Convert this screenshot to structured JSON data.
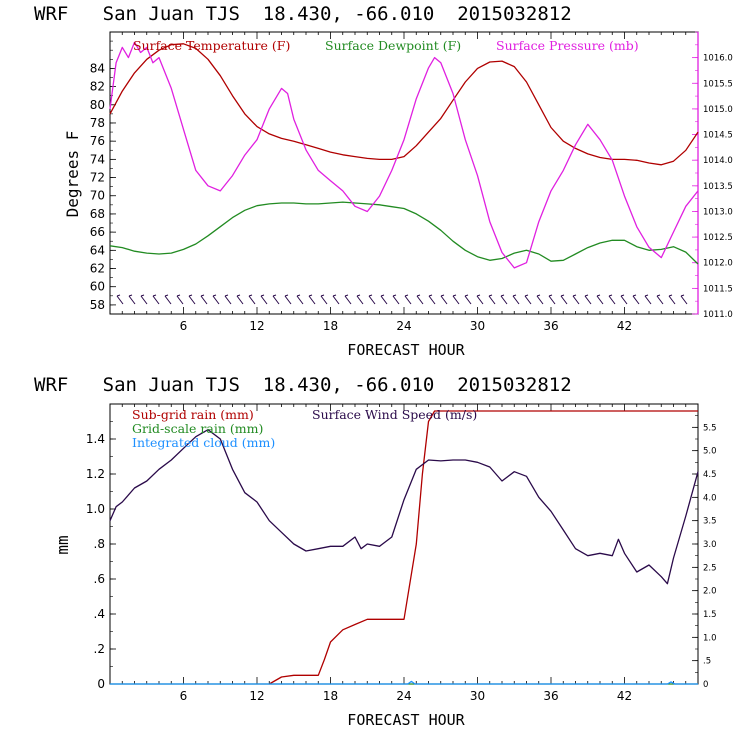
{
  "colors": {
    "temperature": "#b00000",
    "dewpoint": "#228b22",
    "pressure": "#e020e0",
    "subgrid_rain": "#b00000",
    "gridscale_rain": "#228b22",
    "cloud": "#1e90ff",
    "wind": "#2a0a4a",
    "frame": "#000000",
    "right_axis": "#e020e0"
  },
  "chart_data": [
    {
      "type": "line",
      "title": "WRF   San Juan TJS  18.430, -66.010  2015032812",
      "xlabel": "FORECAST HOUR",
      "ylabel": "Degrees F",
      "xlim": [
        0,
        48
      ],
      "ylim": [
        57,
        88
      ],
      "y2lim": [
        1011.0,
        1016.5
      ],
      "x_ticks": [
        6,
        12,
        18,
        24,
        30,
        36,
        42
      ],
      "y_ticks": [
        58,
        60,
        62,
        64,
        66,
        68,
        70,
        72,
        74,
        76,
        78,
        80,
        82,
        84
      ],
      "y2_ticks": [
        "1011.0",
        "1011.5",
        "1012.0",
        "1012.5",
        "1013.0",
        "1013.5",
        "1014.0",
        "1014.5",
        "1015.0",
        "1015.5",
        "1016.0"
      ],
      "legend": [
        "Surface Temperature (F)",
        "Surface Dewpoint (F)",
        "Surface Pressure (mb)"
      ],
      "series": [
        {
          "name": "Surface Temperature (F)",
          "axis": "left",
          "x": [
            0,
            1,
            2,
            3,
            4,
            5,
            6,
            7,
            8,
            9,
            10,
            11,
            12,
            13,
            14,
            15,
            16,
            17,
            18,
            19,
            20,
            21,
            22,
            23,
            24,
            25,
            26,
            27,
            28,
            29,
            30,
            31,
            32,
            33,
            34,
            35,
            36,
            37,
            38,
            39,
            40,
            41,
            42,
            43,
            44,
            45,
            46,
            47,
            48
          ],
          "y": [
            79,
            81.5,
            83.5,
            85,
            86,
            86.6,
            86.7,
            86.2,
            85,
            83.2,
            81,
            79,
            77.6,
            76.8,
            76.3,
            76,
            75.6,
            75.2,
            74.8,
            74.5,
            74.3,
            74.1,
            74,
            74,
            74.3,
            75.5,
            77,
            78.5,
            80.5,
            82.5,
            84,
            84.7,
            84.8,
            84.2,
            82.5,
            80,
            77.5,
            76,
            75.2,
            74.6,
            74.2,
            74,
            74,
            73.9,
            73.6,
            73.4,
            73.8,
            75,
            77
          ]
        },
        {
          "name": "Surface Dewpoint (F)",
          "axis": "left",
          "x": [
            0,
            1,
            2,
            3,
            4,
            5,
            6,
            7,
            8,
            9,
            10,
            11,
            12,
            13,
            14,
            15,
            16,
            17,
            18,
            19,
            20,
            21,
            22,
            23,
            24,
            25,
            26,
            27,
            28,
            29,
            30,
            31,
            32,
            33,
            34,
            35,
            36,
            37,
            38,
            39,
            40,
            41,
            42,
            43,
            44,
            45,
            46,
            47,
            48
          ],
          "y": [
            64.5,
            64.3,
            63.9,
            63.7,
            63.6,
            63.7,
            64.1,
            64.7,
            65.6,
            66.6,
            67.6,
            68.4,
            68.9,
            69.1,
            69.2,
            69.2,
            69.1,
            69.1,
            69.2,
            69.3,
            69.2,
            69.1,
            69,
            68.8,
            68.6,
            68,
            67.2,
            66.2,
            65,
            64,
            63.3,
            62.9,
            63.1,
            63.7,
            64,
            63.6,
            62.8,
            62.9,
            63.6,
            64.3,
            64.8,
            65.1,
            65.1,
            64.4,
            64,
            64.1,
            64.4,
            63.8,
            62.5
          ]
        },
        {
          "name": "Surface Pressure (mb)",
          "axis": "right",
          "x": [
            0,
            0.5,
            1,
            1.5,
            2,
            2.5,
            3,
            3.5,
            4,
            5,
            6,
            7,
            8,
            9,
            10,
            11,
            12,
            13,
            14,
            14.5,
            15,
            16,
            17,
            18,
            19,
            20,
            21,
            22,
            23,
            24,
            25,
            26,
            26.5,
            27,
            28,
            29,
            30,
            31,
            32,
            33,
            34,
            35,
            36,
            37,
            38,
            39,
            40,
            41,
            42,
            43,
            44,
            45,
            46,
            47,
            48
          ],
          "y": [
            1015,
            1015.9,
            1016.2,
            1016,
            1016.3,
            1016.1,
            1016.2,
            1015.9,
            1016,
            1015.4,
            1014.6,
            1013.8,
            1013.5,
            1013.4,
            1013.7,
            1014.1,
            1014.4,
            1015,
            1015.4,
            1015.3,
            1014.8,
            1014.2,
            1013.8,
            1013.6,
            1013.4,
            1013.1,
            1013,
            1013.3,
            1013.8,
            1014.4,
            1015.2,
            1015.8,
            1016,
            1015.9,
            1015.3,
            1014.4,
            1013.7,
            1012.8,
            1012.2,
            1011.9,
            1012,
            1012.8,
            1013.4,
            1013.8,
            1014.3,
            1014.7,
            1014.4,
            1014,
            1013.3,
            1012.7,
            1012.3,
            1012.1,
            1012.6,
            1013.1,
            1013.4
          ]
        }
      ]
    },
    {
      "type": "line",
      "title": "WRF   San Juan TJS  18.430, -66.010  2015032812",
      "xlabel": "FORECAST HOUR",
      "ylabel": "mm",
      "xlim": [
        0,
        48
      ],
      "ylim": [
        0,
        1.6
      ],
      "y2lim": [
        0,
        6.0
      ],
      "x_ticks": [
        6,
        12,
        18,
        24,
        30,
        36,
        42
      ],
      "y_ticks": [
        "0",
        ".2",
        ".4",
        ".6",
        ".8",
        "1.0",
        "1.2",
        "1.4"
      ],
      "y2_ticks": [
        "0",
        ".5",
        "1.0",
        "1.5",
        "2.0",
        "2.5",
        "3.0",
        "3.5",
        "4.0",
        "4.5",
        "5.0",
        "5.5"
      ],
      "legend": [
        "Sub-grid rain (mm)",
        "Surface Wind Speed (m/s)",
        "Grid-scale rain (mm)",
        "Integrated cloud (mm)"
      ],
      "series": [
        {
          "name": "Sub-grid rain (mm)",
          "axis": "left",
          "x": [
            13,
            14,
            15,
            16,
            17,
            17.5,
            18,
            19,
            20,
            21,
            22,
            23,
            24,
            25,
            25.5,
            26,
            26.5,
            27,
            30,
            36,
            42,
            48
          ],
          "y": [
            0,
            0.04,
            0.05,
            0.05,
            0.05,
            0.14,
            0.24,
            0.31,
            0.34,
            0.37,
            0.37,
            0.37,
            0.37,
            0.8,
            1.2,
            1.5,
            1.56,
            1.56,
            1.56,
            1.56,
            1.56,
            1.56
          ]
        },
        {
          "name": "Grid-scale rain (mm)",
          "axis": "left",
          "x": [
            0,
            48
          ],
          "y": [
            0,
            0
          ]
        },
        {
          "name": "Integrated cloud (mm)",
          "axis": "left",
          "x": [
            0,
            24.3,
            24.6,
            24.9,
            45.5,
            45.8,
            46.1,
            48
          ],
          "y": [
            0,
            0,
            0.015,
            0,
            0,
            0.012,
            0,
            0
          ]
        },
        {
          "name": "Surface Wind Speed (m/s)",
          "axis": "right",
          "x": [
            0,
            0.5,
            1,
            2,
            3,
            4,
            5,
            6,
            7,
            8,
            9,
            10,
            11,
            12,
            13,
            14,
            15,
            16,
            17,
            18,
            19,
            20,
            20.5,
            21,
            22,
            23,
            24,
            25,
            26,
            27,
            28,
            29,
            30,
            31,
            32,
            33,
            34,
            35,
            36,
            37,
            38,
            39,
            40,
            41,
            41.5,
            42,
            43,
            44,
            45,
            45.5,
            46,
            47,
            48
          ],
          "y": [
            3.5,
            3.8,
            3.9,
            4.2,
            4.35,
            4.6,
            4.8,
            5.05,
            5.3,
            5.45,
            5.25,
            4.6,
            4.1,
            3.9,
            3.5,
            3.25,
            3.0,
            2.85,
            2.9,
            2.95,
            2.95,
            3.15,
            2.9,
            3.0,
            2.95,
            3.15,
            3.95,
            4.6,
            4.8,
            4.78,
            4.8,
            4.8,
            4.75,
            4.65,
            4.35,
            4.55,
            4.45,
            4.0,
            3.7,
            3.3,
            2.9,
            2.75,
            2.8,
            2.75,
            3.1,
            2.8,
            2.4,
            2.55,
            2.3,
            2.15,
            2.7,
            3.6,
            4.55
          ]
        }
      ]
    }
  ]
}
